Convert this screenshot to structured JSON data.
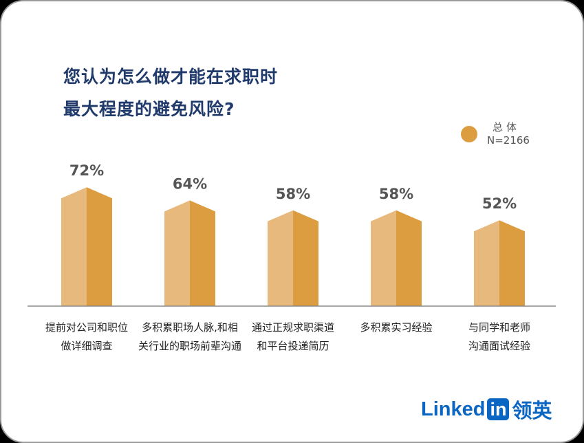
{
  "title": {
    "line1": "您认为怎么做才能在求职时",
    "line2": "最大程度的避免风险?"
  },
  "legend": {
    "name": "总体",
    "n": "N=2166",
    "color": "#dc9d40"
  },
  "colors": {
    "bar_light": "#e8b97c",
    "bar_dark": "#dc9d40",
    "axis": "#8a8a8a"
  },
  "chart_data": {
    "type": "bar",
    "categories": [
      [
        "提前对公司和职位",
        "做详细调查"
      ],
      [
        "多积累职场人脉,和相",
        "关行业的职场前辈沟通"
      ],
      [
        "通过正规求职渠道",
        "和平台投递简历"
      ],
      [
        "多积累实习经验"
      ],
      [
        "与同学和老师",
        "沟通面试经验"
      ]
    ],
    "series": [
      {
        "name": "总体",
        "values": [
          72,
          64,
          58,
          58,
          52
        ],
        "labels": [
          "72%",
          "64%",
          "58%",
          "58%",
          "52%"
        ]
      }
    ]
  },
  "brand": {
    "linked": "Linked",
    "in": "in",
    "cn": "领英"
  }
}
